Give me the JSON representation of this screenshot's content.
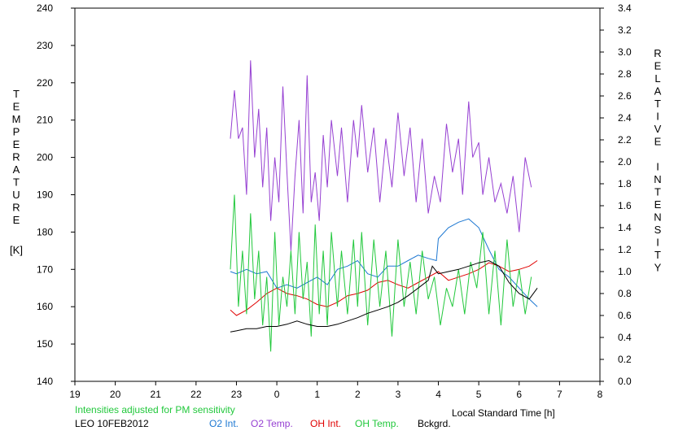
{
  "chart_data": {
    "type": "line",
    "title": "",
    "left_axis_letters": [
      "T",
      "E",
      "M",
      "P",
      "E",
      "R",
      "A",
      "T",
      "U",
      "R",
      "E"
    ],
    "left_axis_unit": "[K]",
    "right_axis_letters": [
      "R",
      "E",
      "L",
      "A",
      "T",
      "I",
      "V",
      "E",
      "",
      "I",
      "N",
      "T",
      "E",
      "N",
      "S",
      "I",
      "T",
      "Y"
    ],
    "xlabel": "Local Standard Time [h]",
    "x_ticks": [
      "19",
      "20",
      "21",
      "22",
      "23",
      "0",
      "1",
      "2",
      "3",
      "4",
      "5",
      "6",
      "7",
      "8"
    ],
    "y_left_ticks": [
      "140",
      "150",
      "160",
      "170",
      "180",
      "190",
      "200",
      "210",
      "220",
      "230",
      "240"
    ],
    "y_right_ticks": [
      "0.0",
      "0.2",
      "0.4",
      "0.6",
      "0.8",
      "1.0",
      "1.2",
      "1.4",
      "1.6",
      "1.8",
      "2.0",
      "2.2",
      "2.4",
      "2.6",
      "2.8",
      "3.0",
      "3.2",
      "3.4"
    ],
    "xlim": [
      19,
      32
    ],
    "ylim_left": [
      140,
      240
    ],
    "ylim_right": [
      0.0,
      3.4
    ],
    "note": "Intensities adjusted for PM sensitivity",
    "station_label": "LEO 10FEB2012",
    "grid": false,
    "series": [
      {
        "name": "O2 Int.",
        "axis": "right",
        "color": "#1e78d2",
        "points": [
          [
            22.85,
            1.0
          ],
          [
            23.0,
            0.98
          ],
          [
            23.25,
            1.02
          ],
          [
            23.5,
            0.98
          ],
          [
            23.75,
            1.0
          ],
          [
            24.0,
            0.85
          ],
          [
            24.25,
            0.88
          ],
          [
            24.5,
            0.85
          ],
          [
            24.75,
            0.9
          ],
          [
            25.0,
            0.95
          ],
          [
            25.25,
            0.88
          ],
          [
            25.5,
            1.02
          ],
          [
            25.75,
            1.05
          ],
          [
            26.0,
            1.1
          ],
          [
            26.25,
            0.98
          ],
          [
            26.5,
            0.95
          ],
          [
            26.75,
            1.05
          ],
          [
            27.0,
            1.05
          ],
          [
            27.25,
            1.1
          ],
          [
            27.5,
            1.15
          ],
          [
            27.75,
            1.12
          ],
          [
            27.95,
            1.1
          ],
          [
            28.0,
            1.3
          ],
          [
            28.25,
            1.4
          ],
          [
            28.5,
            1.45
          ],
          [
            28.75,
            1.48
          ],
          [
            29.0,
            1.4
          ],
          [
            29.25,
            1.2
          ],
          [
            29.5,
            1.02
          ],
          [
            29.75,
            0.95
          ],
          [
            30.0,
            0.85
          ],
          [
            30.25,
            0.75
          ],
          [
            30.45,
            0.68
          ]
        ]
      },
      {
        "name": "O2 Temp.",
        "axis": "left",
        "color": "#9640d2",
        "points": [
          [
            22.85,
            205
          ],
          [
            22.95,
            218
          ],
          [
            23.05,
            205
          ],
          [
            23.15,
            208
          ],
          [
            23.25,
            190
          ],
          [
            23.35,
            226
          ],
          [
            23.45,
            200
          ],
          [
            23.55,
            213
          ],
          [
            23.65,
            192
          ],
          [
            23.75,
            208
          ],
          [
            23.85,
            183
          ],
          [
            23.95,
            200
          ],
          [
            24.05,
            188
          ],
          [
            24.15,
            219
          ],
          [
            24.25,
            196
          ],
          [
            24.35,
            175
          ],
          [
            24.45,
            195
          ],
          [
            24.55,
            210
          ],
          [
            24.65,
            185
          ],
          [
            24.75,
            222
          ],
          [
            24.85,
            188
          ],
          [
            24.95,
            196
          ],
          [
            25.05,
            183
          ],
          [
            25.15,
            206
          ],
          [
            25.25,
            192
          ],
          [
            25.35,
            210
          ],
          [
            25.5,
            195
          ],
          [
            25.6,
            208
          ],
          [
            25.75,
            188
          ],
          [
            25.9,
            210
          ],
          [
            26.0,
            200
          ],
          [
            26.1,
            214
          ],
          [
            26.25,
            196
          ],
          [
            26.4,
            208
          ],
          [
            26.55,
            188
          ],
          [
            26.7,
            205
          ],
          [
            26.85,
            192
          ],
          [
            27.0,
            212
          ],
          [
            27.15,
            195
          ],
          [
            27.3,
            208
          ],
          [
            27.45,
            188
          ],
          [
            27.6,
            205
          ],
          [
            27.75,
            185
          ],
          [
            27.9,
            195
          ],
          [
            28.05,
            188
          ],
          [
            28.2,
            209
          ],
          [
            28.35,
            196
          ],
          [
            28.5,
            205
          ],
          [
            28.6,
            190
          ],
          [
            28.75,
            215
          ],
          [
            28.85,
            200
          ],
          [
            29.0,
            204
          ],
          [
            29.1,
            190
          ],
          [
            29.25,
            200
          ],
          [
            29.4,
            188
          ],
          [
            29.55,
            193
          ],
          [
            29.7,
            185
          ],
          [
            29.85,
            195
          ],
          [
            30.0,
            180
          ],
          [
            30.15,
            200
          ],
          [
            30.3,
            192
          ]
        ]
      },
      {
        "name": "OH Int.",
        "axis": "right",
        "color": "#e00000",
        "points": [
          [
            22.85,
            0.65
          ],
          [
            23.0,
            0.6
          ],
          [
            23.25,
            0.65
          ],
          [
            23.5,
            0.72
          ],
          [
            23.75,
            0.8
          ],
          [
            24.0,
            0.85
          ],
          [
            24.25,
            0.8
          ],
          [
            24.5,
            0.78
          ],
          [
            24.75,
            0.75
          ],
          [
            25.0,
            0.7
          ],
          [
            25.25,
            0.68
          ],
          [
            25.5,
            0.72
          ],
          [
            25.75,
            0.78
          ],
          [
            26.0,
            0.8
          ],
          [
            26.25,
            0.83
          ],
          [
            26.5,
            0.9
          ],
          [
            26.75,
            0.92
          ],
          [
            27.0,
            0.88
          ],
          [
            27.25,
            0.85
          ],
          [
            27.5,
            0.9
          ],
          [
            27.75,
            0.95
          ],
          [
            28.0,
            1.0
          ],
          [
            28.25,
            0.92
          ],
          [
            28.5,
            0.95
          ],
          [
            28.75,
            0.98
          ],
          [
            29.0,
            1.02
          ],
          [
            29.25,
            1.08
          ],
          [
            29.5,
            1.05
          ],
          [
            29.75,
            1.0
          ],
          [
            30.0,
            1.02
          ],
          [
            30.25,
            1.05
          ],
          [
            30.45,
            1.1
          ]
        ]
      },
      {
        "name": "OH Temp.",
        "axis": "left",
        "color": "#22c83c",
        "points": [
          [
            22.85,
            170
          ],
          [
            22.95,
            190
          ],
          [
            23.05,
            160
          ],
          [
            23.15,
            175
          ],
          [
            23.25,
            158
          ],
          [
            23.35,
            185
          ],
          [
            23.45,
            162
          ],
          [
            23.55,
            175
          ],
          [
            23.65,
            155
          ],
          [
            23.75,
            168
          ],
          [
            23.85,
            148
          ],
          [
            23.95,
            180
          ],
          [
            24.05,
            155
          ],
          [
            24.15,
            168
          ],
          [
            24.25,
            160
          ],
          [
            24.35,
            175
          ],
          [
            24.45,
            158
          ],
          [
            24.55,
            180
          ],
          [
            24.65,
            162
          ],
          [
            24.75,
            172
          ],
          [
            24.85,
            152
          ],
          [
            24.95,
            182
          ],
          [
            25.05,
            158
          ],
          [
            25.15,
            175
          ],
          [
            25.25,
            155
          ],
          [
            25.35,
            180
          ],
          [
            25.5,
            160
          ],
          [
            25.6,
            175
          ],
          [
            25.75,
            158
          ],
          [
            25.9,
            178
          ],
          [
            26.0,
            160
          ],
          [
            26.1,
            180
          ],
          [
            26.25,
            155
          ],
          [
            26.4,
            178
          ],
          [
            26.55,
            160
          ],
          [
            26.7,
            175
          ],
          [
            26.85,
            152
          ],
          [
            27.0,
            178
          ],
          [
            27.15,
            160
          ],
          [
            27.3,
            172
          ],
          [
            27.45,
            158
          ],
          [
            27.6,
            175
          ],
          [
            27.75,
            162
          ],
          [
            27.9,
            168
          ],
          [
            28.05,
            155
          ],
          [
            28.2,
            165
          ],
          [
            28.35,
            160
          ],
          [
            28.5,
            170
          ],
          [
            28.65,
            158
          ],
          [
            28.8,
            172
          ],
          [
            28.95,
            165
          ],
          [
            29.1,
            180
          ],
          [
            29.25,
            158
          ],
          [
            29.4,
            175
          ],
          [
            29.55,
            155
          ],
          [
            29.7,
            178
          ],
          [
            29.85,
            160
          ],
          [
            30.0,
            170
          ],
          [
            30.15,
            158
          ],
          [
            30.3,
            168
          ]
        ]
      },
      {
        "name": "Bckgrd.",
        "axis": "right",
        "color": "#000000",
        "points": [
          [
            22.85,
            0.45
          ],
          [
            23.0,
            0.46
          ],
          [
            23.25,
            0.48
          ],
          [
            23.5,
            0.48
          ],
          [
            23.75,
            0.5
          ],
          [
            24.0,
            0.5
          ],
          [
            24.25,
            0.52
          ],
          [
            24.5,
            0.55
          ],
          [
            24.75,
            0.52
          ],
          [
            25.0,
            0.5
          ],
          [
            25.25,
            0.5
          ],
          [
            25.5,
            0.52
          ],
          [
            25.75,
            0.55
          ],
          [
            26.0,
            0.58
          ],
          [
            26.25,
            0.62
          ],
          [
            26.5,
            0.65
          ],
          [
            26.75,
            0.68
          ],
          [
            27.0,
            0.72
          ],
          [
            27.25,
            0.78
          ],
          [
            27.5,
            0.85
          ],
          [
            27.75,
            0.92
          ],
          [
            27.85,
            1.05
          ],
          [
            28.0,
            0.98
          ],
          [
            28.25,
            1.0
          ],
          [
            28.5,
            1.02
          ],
          [
            28.75,
            1.05
          ],
          [
            29.0,
            1.08
          ],
          [
            29.25,
            1.1
          ],
          [
            29.5,
            1.05
          ],
          [
            29.75,
            0.9
          ],
          [
            30.0,
            0.8
          ],
          [
            30.25,
            0.75
          ],
          [
            30.45,
            0.85
          ]
        ]
      }
    ]
  }
}
